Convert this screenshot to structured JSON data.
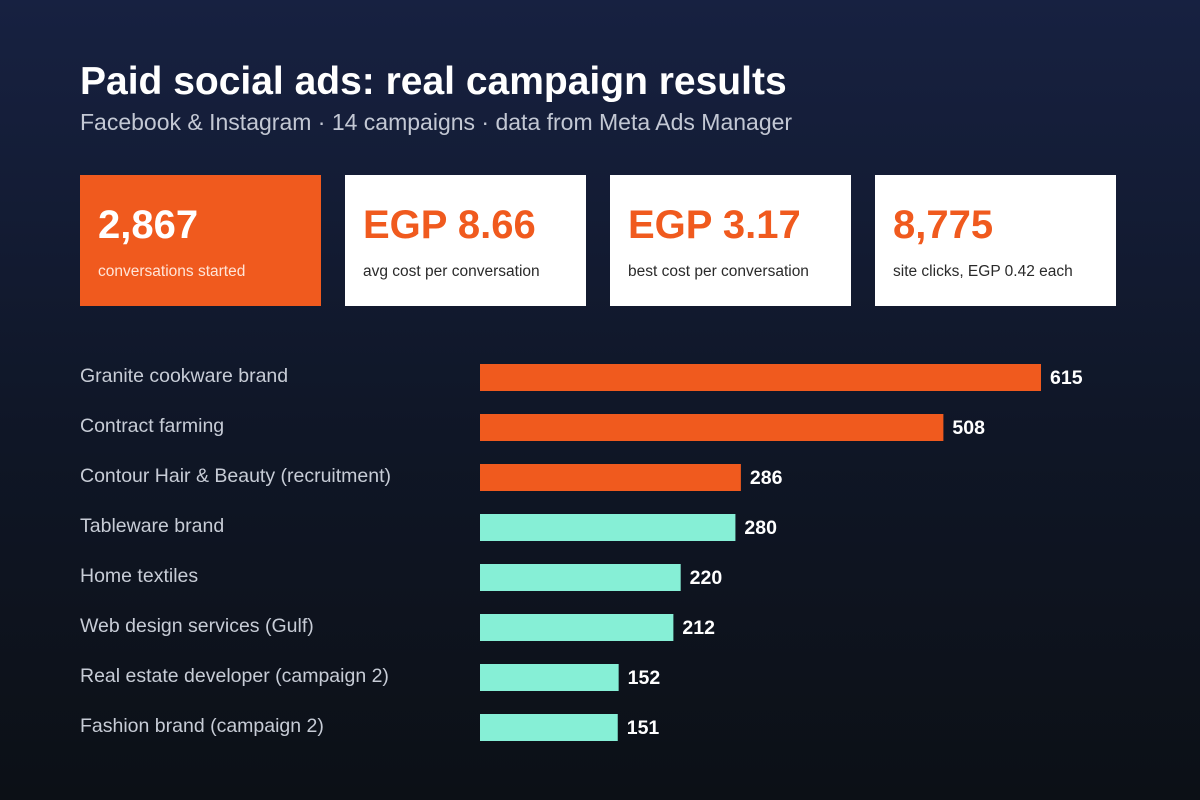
{
  "header": {
    "title": "Paid social ads: real campaign results",
    "subtitle": "Facebook & Instagram · 14 campaigns · data from Meta Ads Manager"
  },
  "stats": [
    {
      "value": "2,867",
      "label": "conversations started"
    },
    {
      "value": "EGP 8.66",
      "label": "avg cost per conversation"
    },
    {
      "value": "EGP 3.17",
      "label": "best cost per conversation"
    },
    {
      "value": "8,775",
      "label": "site clicks, EGP 0.42 each"
    }
  ],
  "colors": {
    "accent": "#f05a1e",
    "highlight_bar": "#f05a1e",
    "regular_bar": "#86efd6",
    "background_top": "#172141",
    "background_bottom": "#0c1016"
  },
  "chart_data": {
    "type": "bar",
    "orientation": "horizontal",
    "categories": [
      "Granite cookware brand",
      "Contract farming",
      "Contour Hair & Beauty (recruitment)",
      "Tableware brand",
      "Home textiles",
      "Web design services (Gulf)",
      "Real estate developer (campaign 2)",
      "Fashion brand (campaign 2)"
    ],
    "values": [
      615,
      508,
      286,
      280,
      220,
      212,
      152,
      151
    ],
    "highlighted": [
      true,
      true,
      true,
      false,
      false,
      false,
      false,
      false
    ],
    "data_labels": true,
    "grid": false,
    "xlim": [
      0,
      615
    ]
  }
}
